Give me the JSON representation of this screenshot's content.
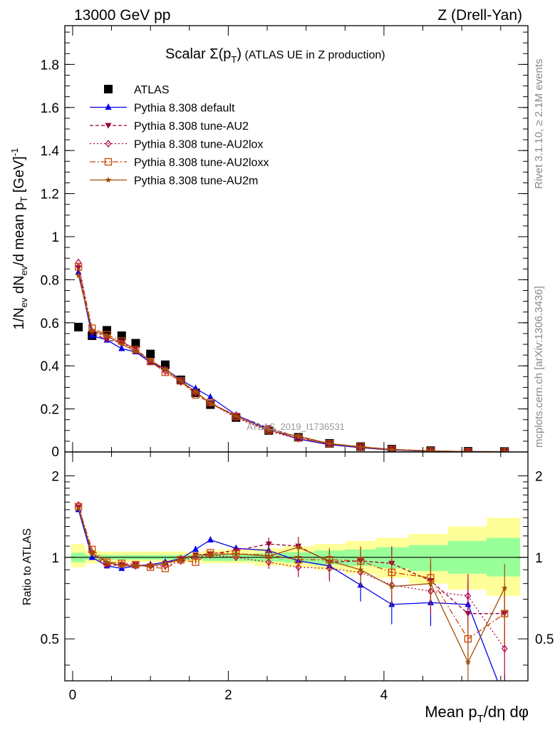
{
  "header": {
    "left": "13000 GeV pp",
    "right": "Z (Drell-Yan)"
  },
  "side_labels": {
    "rivet": "Rivet 3.1.10, ≥ 2.1M events",
    "mcplots": "mcplots.cern.ch [arXiv:1306.3436]"
  },
  "chart_data": [
    {
      "type": "scatter",
      "title": "Scalar Σ(p_T) (ATLAS UE in Z production)",
      "title_parts": {
        "main": "Scalar Σ(p",
        "sub": "T",
        "close": ")",
        "rest": " (ATLAS UE in Z production)"
      },
      "ylabel": "1/N_ev dN_ev/d mean p_T [GeV]^-1",
      "xlabel": "Mean p_T/dη dφ",
      "watermark": "ATLAS_2019_I1736531",
      "xlim": [
        -0.1,
        5.85
      ],
      "ylim": [
        0,
        1.98
      ],
      "xticks": [
        0,
        2,
        4
      ],
      "yticks": [
        0.2,
        0.4,
        0.6,
        0.8,
        1,
        1.2,
        1.4,
        1.6,
        1.8
      ],
      "ytick_labels": [
        "0.2",
        "0.4",
        "0.6",
        "0.8",
        "1",
        "1.2",
        "1.4",
        "1.6",
        "1.8"
      ],
      "legend_position": "top-left",
      "x": [
        0.075,
        0.25,
        0.44,
        0.63,
        0.81,
        1.0,
        1.19,
        1.39,
        1.58,
        1.77,
        2.1,
        2.52,
        2.9,
        3.3,
        3.7,
        4.1,
        4.6,
        5.08,
        5.55
      ],
      "series": [
        {
          "name": "ATLAS",
          "color": "#000000",
          "marker": "square",
          "dash": "",
          "values": [
            0.58,
            0.54,
            0.565,
            0.54,
            0.505,
            0.455,
            0.405,
            0.335,
            0.275,
            0.22,
            0.16,
            0.1,
            0.068,
            0.04,
            0.025,
            0.013,
            0.006,
            0.003,
            0.002
          ]
        },
        {
          "name": "Pythia 8.308 default",
          "color": "#0000ee",
          "marker": "triangle",
          "dash": "",
          "values": [
            0.835,
            0.54,
            0.52,
            0.48,
            0.465,
            0.415,
            0.385,
            0.335,
            0.295,
            0.255,
            0.172,
            0.105,
            0.06,
            0.034,
            0.02,
            0.009,
            0.004,
            0.002,
            0.001
          ]
        },
        {
          "name": "Pythia 8.308 tune-AU2",
          "color": "#99003d",
          "marker": "triangle-down",
          "dash": "5,3",
          "values": [
            0.855,
            0.555,
            0.52,
            0.51,
            0.48,
            0.42,
            0.385,
            0.33,
            0.28,
            0.225,
            0.17,
            0.112,
            0.069,
            0.038,
            0.024,
            0.012,
            0.005,
            0.002,
            0.001
          ]
        },
        {
          "name": "Pythia 8.308 tune-AU2lox",
          "color": "#b30047",
          "marker": "diamond",
          "dash": "2,3",
          "values": [
            0.88,
            0.56,
            0.535,
            0.51,
            0.47,
            0.42,
            0.375,
            0.325,
            0.275,
            0.225,
            0.16,
            0.096,
            0.062,
            0.036,
            0.02,
            0.01,
            0.005,
            0.002,
            0.001
          ]
        },
        {
          "name": "Pythia 8.308 tune-AU2loxx",
          "color": "#cc4400",
          "marker": "open-square",
          "dash": "8,3,2,3",
          "values": [
            0.86,
            0.575,
            0.545,
            0.515,
            0.475,
            0.42,
            0.37,
            0.33,
            0.265,
            0.23,
            0.165,
            0.102,
            0.065,
            0.039,
            0.025,
            0.012,
            0.005,
            0.0015,
            0.0012
          ]
        },
        {
          "name": "Pythia 8.308 tune-AU2m",
          "color": "#a0500a",
          "marker": "star",
          "dash": "",
          "values": [
            0.82,
            0.565,
            0.54,
            0.5,
            0.47,
            0.425,
            0.385,
            0.33,
            0.28,
            0.225,
            0.165,
            0.1,
            0.074,
            0.039,
            0.023,
            0.01,
            0.005,
            0.0012,
            0.0015
          ]
        }
      ]
    },
    {
      "type": "line",
      "ylabel": "Ratio to ATLAS",
      "ylog": true,
      "ylim": [
        0.35,
        2.45
      ],
      "yticks": [
        0.5,
        1,
        2
      ],
      "ytick_labels": [
        "0.5",
        "1",
        "2"
      ],
      "xticks": [
        0,
        2,
        4
      ],
      "xtick_labels": [
        "0",
        "2",
        "4"
      ],
      "bin_edges": [
        -0.02,
        0.16,
        0.34,
        0.53,
        0.72,
        0.9,
        1.1,
        1.29,
        1.48,
        1.67,
        1.86,
        2.33,
        2.72,
        3.1,
        3.5,
        3.9,
        4.32,
        4.82,
        5.32,
        5.75
      ],
      "band_stat": {
        "color": "#99ff99",
        "lower": [
          0.96,
          0.98,
          0.98,
          0.98,
          0.98,
          0.98,
          0.98,
          0.98,
          0.98,
          0.97,
          0.97,
          0.965,
          0.955,
          0.94,
          0.93,
          0.91,
          0.89,
          0.87,
          0.85
        ],
        "upper": [
          1.04,
          1.02,
          1.02,
          1.02,
          1.02,
          1.02,
          1.02,
          1.02,
          1.02,
          1.03,
          1.03,
          1.035,
          1.045,
          1.06,
          1.07,
          1.09,
          1.11,
          1.15,
          1.18
        ]
      },
      "band_total": {
        "color": "#ffff99",
        "lower": [
          0.92,
          0.95,
          0.96,
          0.96,
          0.96,
          0.96,
          0.96,
          0.96,
          0.96,
          0.95,
          0.95,
          0.93,
          0.92,
          0.9,
          0.87,
          0.84,
          0.8,
          0.76,
          0.72
        ],
        "upper": [
          1.12,
          1.06,
          1.05,
          1.05,
          1.05,
          1.05,
          1.05,
          1.05,
          1.05,
          1.06,
          1.07,
          1.08,
          1.1,
          1.12,
          1.15,
          1.18,
          1.22,
          1.3,
          1.4
        ]
      },
      "x": [
        0.075,
        0.25,
        0.44,
        0.63,
        0.81,
        1.0,
        1.19,
        1.39,
        1.58,
        1.77,
        2.1,
        2.52,
        2.9,
        3.3,
        3.7,
        4.1,
        4.6,
        5.08,
        5.55
      ],
      "series": [
        {
          "name": "Pythia 8.308 default",
          "values": [
            1.5,
            1.0,
            0.93,
            0.91,
            0.93,
            0.94,
            0.96,
            0.99,
            1.07,
            1.16,
            1.08,
            1.06,
            0.97,
            0.93,
            0.79,
            0.67,
            0.68,
            0.67,
            0.3
          ]
        },
        {
          "name": "Pythia 8.308 tune-AU2",
          "values": [
            1.53,
            1.03,
            0.93,
            0.94,
            0.94,
            0.93,
            0.95,
            0.99,
            1.02,
            1.03,
            1.06,
            1.12,
            1.1,
            0.96,
            0.97,
            0.95,
            0.82,
            0.62,
            0.62
          ]
        },
        {
          "name": "Pythia 8.308 tune-AU2lox",
          "values": [
            1.56,
            1.04,
            0.95,
            0.94,
            0.93,
            0.93,
            0.93,
            0.97,
            1.0,
            1.02,
            1.0,
            0.96,
            0.92,
            0.91,
            0.88,
            0.79,
            0.75,
            0.72,
            0.46
          ]
        },
        {
          "name": "Pythia 8.308 tune-AU2loxx",
          "values": [
            1.54,
            1.07,
            0.96,
            0.95,
            0.94,
            0.92,
            0.91,
            0.98,
            0.96,
            1.04,
            1.03,
            1.02,
            0.98,
            0.98,
            0.97,
            0.88,
            0.84,
            0.5,
            0.62
          ]
        },
        {
          "name": "Pythia 8.308 tune-AU2m",
          "values": [
            1.52,
            1.04,
            0.96,
            0.93,
            0.93,
            0.93,
            0.95,
            0.98,
            1.02,
            1.02,
            1.03,
            1.01,
            1.09,
            0.97,
            0.9,
            0.78,
            0.8,
            0.41,
            0.77
          ]
        }
      ]
    }
  ]
}
